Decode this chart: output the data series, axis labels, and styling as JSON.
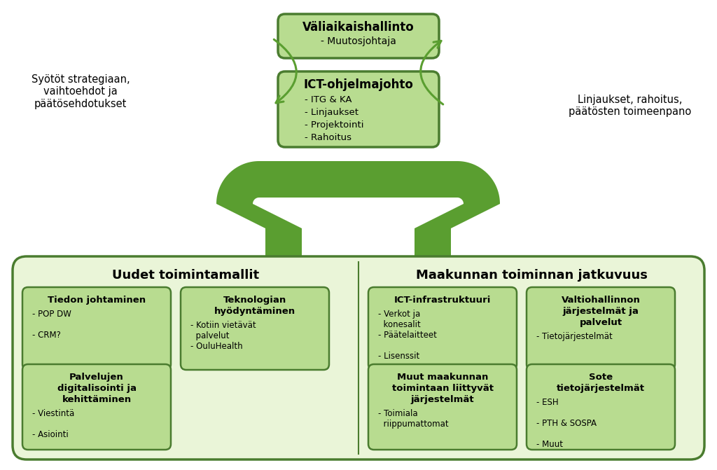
{
  "bg_color": "#ffffff",
  "dark_green": "#4a7c2f",
  "mid_green": "#5a9e30",
  "light_green": "#a8d878",
  "lightest_green": "#eaf5d8",
  "box_fill": "#b8dc90",
  "top_box1": {
    "title": "Väliaikaishallinto",
    "lines": [
      "- Muutosjohtaja"
    ]
  },
  "top_box2": {
    "title": "ICT-ohjelmajohto",
    "lines": [
      "- ITG & KA",
      "- Linjaukset",
      "- Projektointi",
      "- Rahoitus"
    ]
  },
  "left_label": "Syötöt strategiaan,\nvaihtoehdot ja\npäätösehdotukset",
  "right_label": "Linjaukset, rahoitus,\npäätösten toimeenpano",
  "section_left_title": "Uudet toimintamallit",
  "section_right_title": "Maakunnan toiminnan jatkuvuus"
}
